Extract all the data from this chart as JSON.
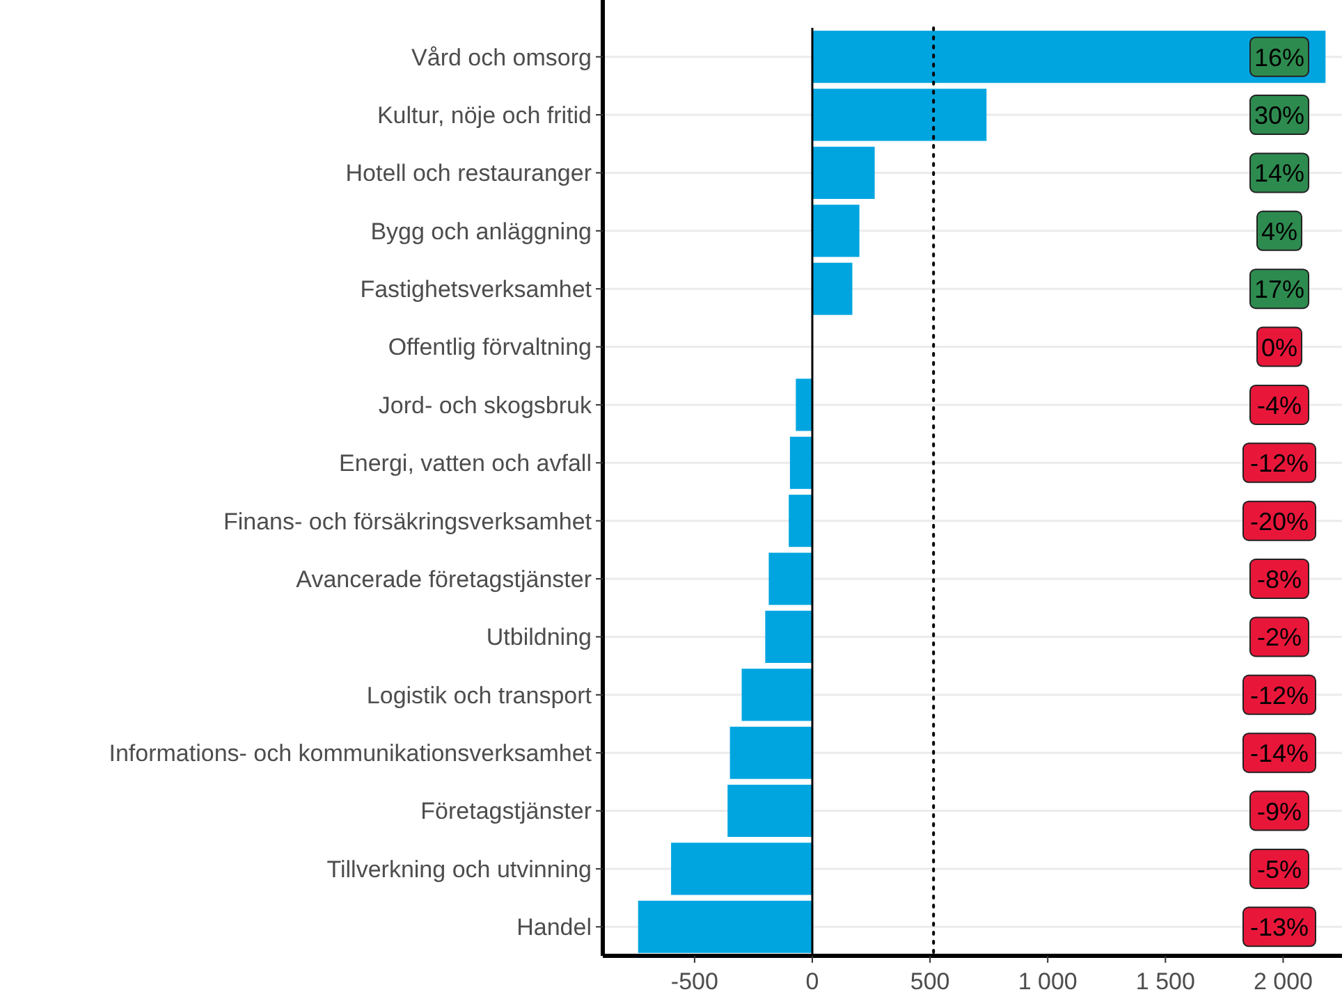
{
  "chart_data": {
    "type": "bar",
    "orientation": "horizontal",
    "categories": [
      "Vård och omsorg",
      "Kultur, nöje och fritid",
      "Hotell och restauranger",
      "Bygg och anläggning",
      "Fastighetsverksamhet",
      "Offentlig förvaltning",
      "Jord- och skogsbruk",
      "Energi, vatten och avfall",
      "Finans- och försäkringsverksamhet",
      "Avancerade företagstjänster",
      "Utbildning",
      "Logistik och transport",
      "Informations- och kommunikationsverksamhet",
      "Företagstjänster",
      "Tillverkning och utvinning",
      "Handel"
    ],
    "values": [
      2180,
      740,
      265,
      200,
      170,
      0,
      -70,
      -95,
      -100,
      -185,
      -200,
      -300,
      -350,
      -360,
      -600,
      -740
    ],
    "color": "#00a5e0",
    "xlim": [
      -890,
      2250
    ],
    "xticks": [
      -500,
      0,
      500,
      {
        "value": 1000,
        "label": "1 000"
      },
      {
        "value": 1500,
        "label": "1 500"
      },
      {
        "value": 2000,
        "label": "2 000"
      }
    ],
    "grid": "y",
    "ref_lines": [
      {
        "axis": "x",
        "value": 0,
        "line_style": "solid",
        "color": "#000000"
      },
      {
        "axis": "x",
        "value": 515,
        "line_style": "dotted",
        "color": "#000000"
      }
    ],
    "annotations": [
      "16%",
      "30%",
      "14%",
      "4%",
      "17%",
      "0%",
      "-4%",
      "-12%",
      "-20%",
      "-8%",
      "-2%",
      "-12%",
      "-14%",
      "-9%",
      "-5%",
      "-13%"
    ]
  }
}
